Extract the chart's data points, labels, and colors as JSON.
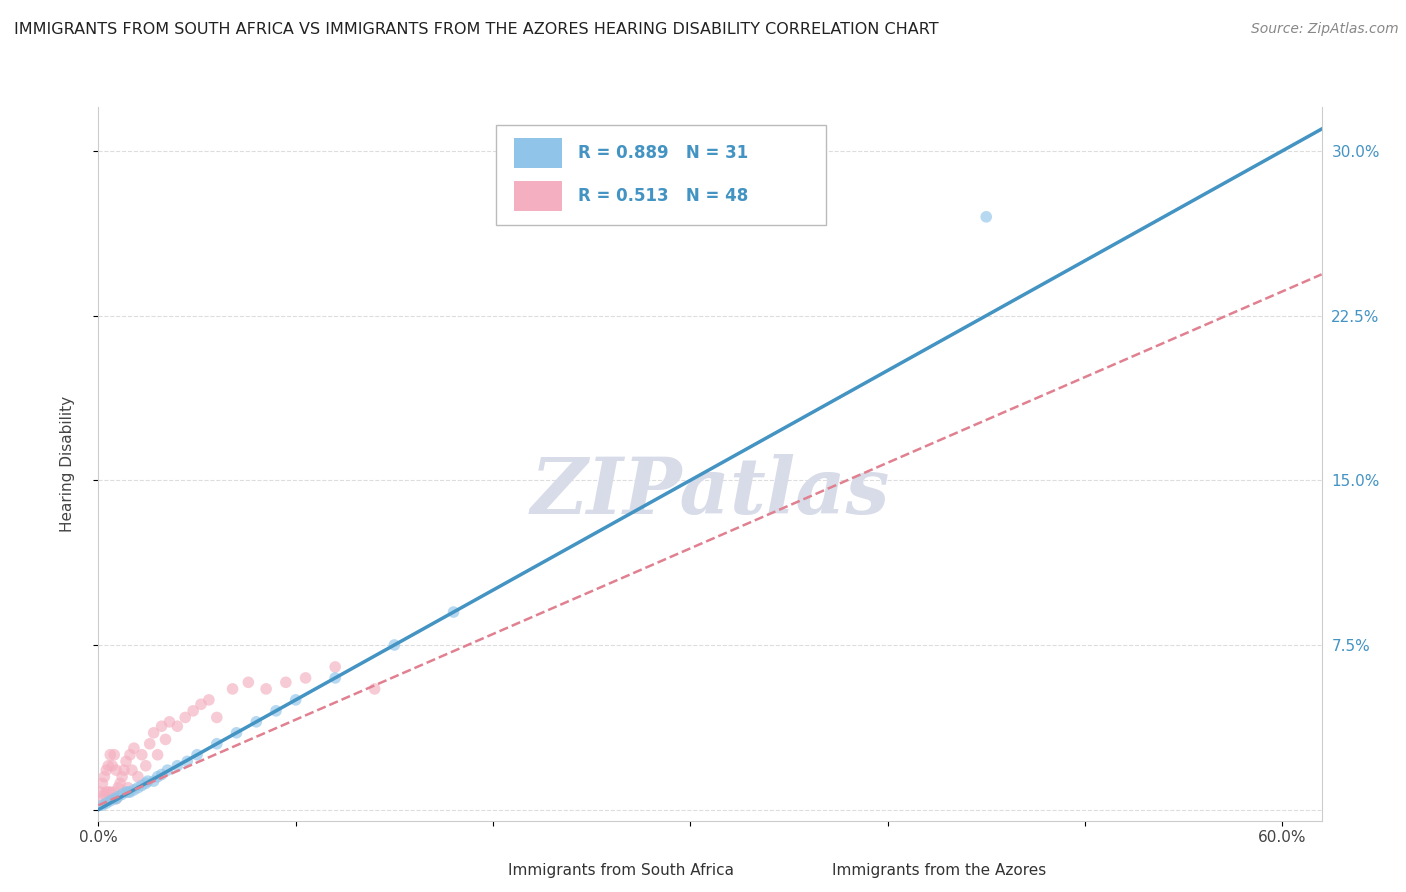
{
  "title": "IMMIGRANTS FROM SOUTH AFRICA VS IMMIGRANTS FROM THE AZORES HEARING DISABILITY CORRELATION CHART",
  "source": "Source: ZipAtlas.com",
  "ylabel": "Hearing Disability",
  "xlim": [
    0.0,
    0.62
  ],
  "ylim": [
    -0.005,
    0.32
  ],
  "xticks": [
    0.0,
    0.1,
    0.2,
    0.3,
    0.4,
    0.5,
    0.6
  ],
  "yticks": [
    0.0,
    0.075,
    0.15,
    0.225,
    0.3
  ],
  "right_ytick_labels": [
    "",
    "7.5%",
    "15.0%",
    "22.5%",
    "30.0%"
  ],
  "xtick_labels": [
    "0.0%",
    "",
    "",
    "",
    "",
    "",
    "60.0%"
  ],
  "blue_R": 0.889,
  "blue_N": 31,
  "pink_R": 0.513,
  "pink_N": 48,
  "blue_color": "#90c4e8",
  "pink_color": "#f4afc0",
  "blue_line_color": "#4393c3",
  "pink_line_color": "#e08090",
  "watermark_text": "ZIPatlas",
  "watermark_color": "#d8dce8",
  "background_color": "#ffffff",
  "grid_color": "#dddddd",
  "blue_line_slope": 0.5,
  "blue_line_intercept": 0.0,
  "pink_line_slope": 0.39,
  "pink_line_intercept": 0.002,
  "south_africa_x": [
    0.002,
    0.004,
    0.006,
    0.008,
    0.009,
    0.01,
    0.012,
    0.014,
    0.015,
    0.016,
    0.018,
    0.02,
    0.022,
    0.024,
    0.025,
    0.028,
    0.03,
    0.032,
    0.035,
    0.04,
    0.045,
    0.05,
    0.06,
    0.07,
    0.08,
    0.09,
    0.1,
    0.12,
    0.15,
    0.18,
    0.45
  ],
  "south_africa_y": [
    0.002,
    0.003,
    0.004,
    0.005,
    0.005,
    0.006,
    0.007,
    0.008,
    0.008,
    0.008,
    0.009,
    0.01,
    0.011,
    0.012,
    0.013,
    0.013,
    0.015,
    0.016,
    0.018,
    0.02,
    0.022,
    0.025,
    0.03,
    0.035,
    0.04,
    0.045,
    0.05,
    0.06,
    0.075,
    0.09,
    0.27
  ],
  "azores_x": [
    0.001,
    0.002,
    0.002,
    0.003,
    0.003,
    0.004,
    0.004,
    0.005,
    0.005,
    0.006,
    0.006,
    0.007,
    0.007,
    0.008,
    0.008,
    0.009,
    0.009,
    0.01,
    0.011,
    0.012,
    0.013,
    0.014,
    0.015,
    0.016,
    0.017,
    0.018,
    0.02,
    0.022,
    0.024,
    0.026,
    0.028,
    0.03,
    0.032,
    0.034,
    0.036,
    0.04,
    0.044,
    0.048,
    0.052,
    0.056,
    0.06,
    0.068,
    0.076,
    0.085,
    0.095,
    0.105,
    0.12,
    0.14
  ],
  "azores_y": [
    0.008,
    0.005,
    0.012,
    0.007,
    0.015,
    0.008,
    0.018,
    0.008,
    0.02,
    0.008,
    0.025,
    0.005,
    0.02,
    0.008,
    0.025,
    0.005,
    0.018,
    0.01,
    0.012,
    0.015,
    0.018,
    0.022,
    0.01,
    0.025,
    0.018,
    0.028,
    0.015,
    0.025,
    0.02,
    0.03,
    0.035,
    0.025,
    0.038,
    0.032,
    0.04,
    0.038,
    0.042,
    0.045,
    0.048,
    0.05,
    0.042,
    0.055,
    0.058,
    0.055,
    0.058,
    0.06,
    0.065,
    0.055
  ]
}
